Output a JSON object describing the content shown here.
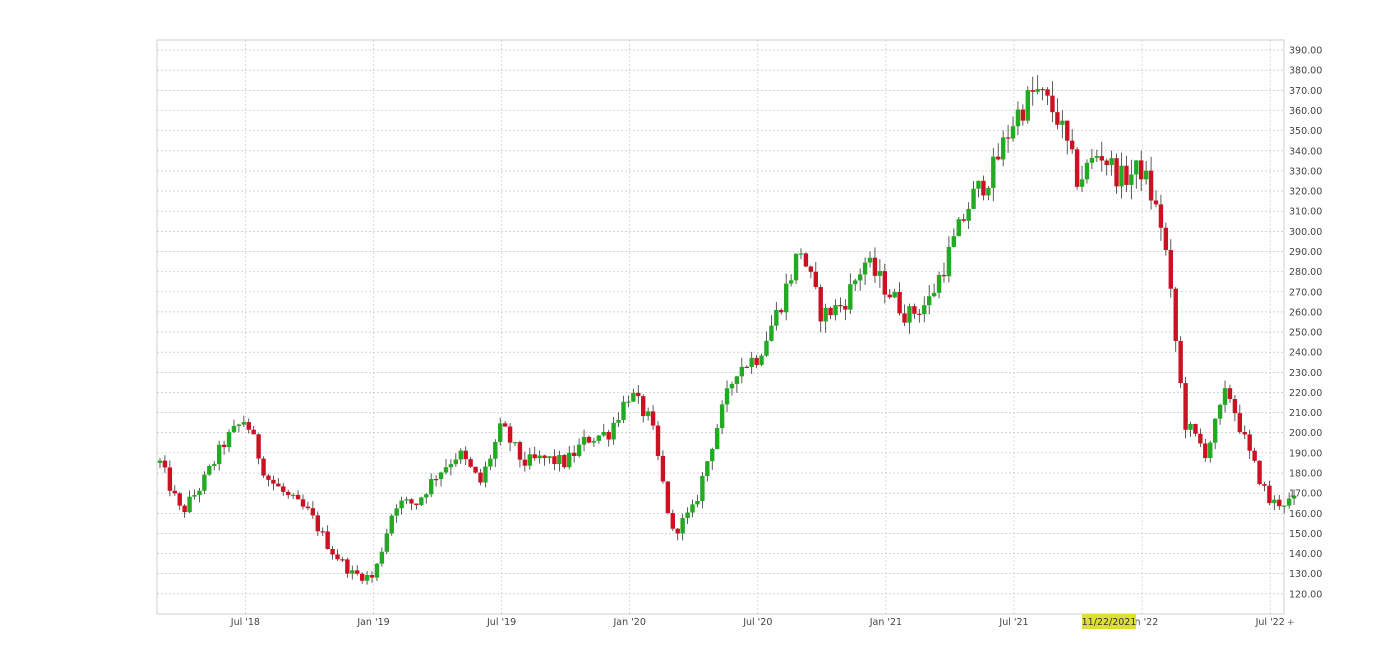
{
  "chart_data": {
    "type": "candlestick",
    "x_axis_labels": [
      "Jul '18",
      "Jan '19",
      "Jul '19",
      "Jan '20",
      "Jul '20",
      "Jan '21",
      "Jul '21",
      "Jan '22",
      "Jul '22"
    ],
    "y_tick_labels": [
      "120.00",
      "130.00",
      "140.00",
      "150.00",
      "160.00",
      "170.00",
      "180.00",
      "190.00",
      "200.00",
      "210.00",
      "220.00",
      "230.00",
      "240.00",
      "250.00",
      "260.00",
      "270.00",
      "280.00",
      "290.00",
      "300.00",
      "310.00",
      "320.00",
      "330.00",
      "340.00",
      "350.00",
      "360.00",
      "370.00",
      "380.00",
      "390.00"
    ],
    "ylim": [
      110,
      395
    ],
    "highlight_label": "11/22/2021",
    "up_color": "#22aa22",
    "down_color": "#cc1122",
    "wick_color": "#333333",
    "anchors": [
      [
        "2018-03",
        185
      ],
      [
        "2018-04",
        160
      ],
      [
        "2018-05",
        175
      ],
      [
        "2018-06",
        195
      ],
      [
        "2018-07",
        207
      ],
      [
        "2018-08",
        178
      ],
      [
        "2018-09",
        168
      ],
      [
        "2018-10",
        160
      ],
      [
        "2018-11",
        142
      ],
      [
        "2018-12",
        130
      ],
      [
        "2019-01",
        128
      ],
      [
        "2019-02",
        165
      ],
      [
        "2019-03",
        165
      ],
      [
        "2019-04",
        180
      ],
      [
        "2019-05",
        190
      ],
      [
        "2019-06",
        175
      ],
      [
        "2019-07",
        203
      ],
      [
        "2019-08",
        185
      ],
      [
        "2019-09",
        187
      ],
      [
        "2019-10",
        185
      ],
      [
        "2019-11",
        197
      ],
      [
        "2019-12",
        200
      ],
      [
        "2020-01",
        220
      ],
      [
        "2020-02",
        205
      ],
      [
        "2020-03",
        150
      ],
      [
        "2020-04",
        162
      ],
      [
        "2020-05",
        200
      ],
      [
        "2020-06",
        232
      ],
      [
        "2020-07",
        238
      ],
      [
        "2020-08",
        262
      ],
      [
        "2020-09",
        292
      ],
      [
        "2020-10",
        258
      ],
      [
        "2020-11",
        264
      ],
      [
        "2020-12",
        285
      ],
      [
        "2021-01",
        272
      ],
      [
        "2021-02",
        258
      ],
      [
        "2021-03",
        265
      ],
      [
        "2021-04",
        290
      ],
      [
        "2021-05",
        316
      ],
      [
        "2021-06",
        330
      ],
      [
        "2021-07",
        356
      ],
      [
        "2021-08",
        370
      ],
      [
        "2021-09",
        358
      ],
      [
        "2021-10",
        325
      ],
      [
        "2021-11",
        340
      ],
      [
        "2021-12",
        326
      ],
      [
        "2022-01",
        331
      ],
      [
        "2022-02",
        300
      ],
      [
        "2022-03",
        205
      ],
      [
        "2022-04",
        190
      ],
      [
        "2022-05",
        222
      ],
      [
        "2022-06",
        190
      ],
      [
        "2022-07",
        165
      ],
      [
        "2022-08",
        166
      ]
    ]
  }
}
